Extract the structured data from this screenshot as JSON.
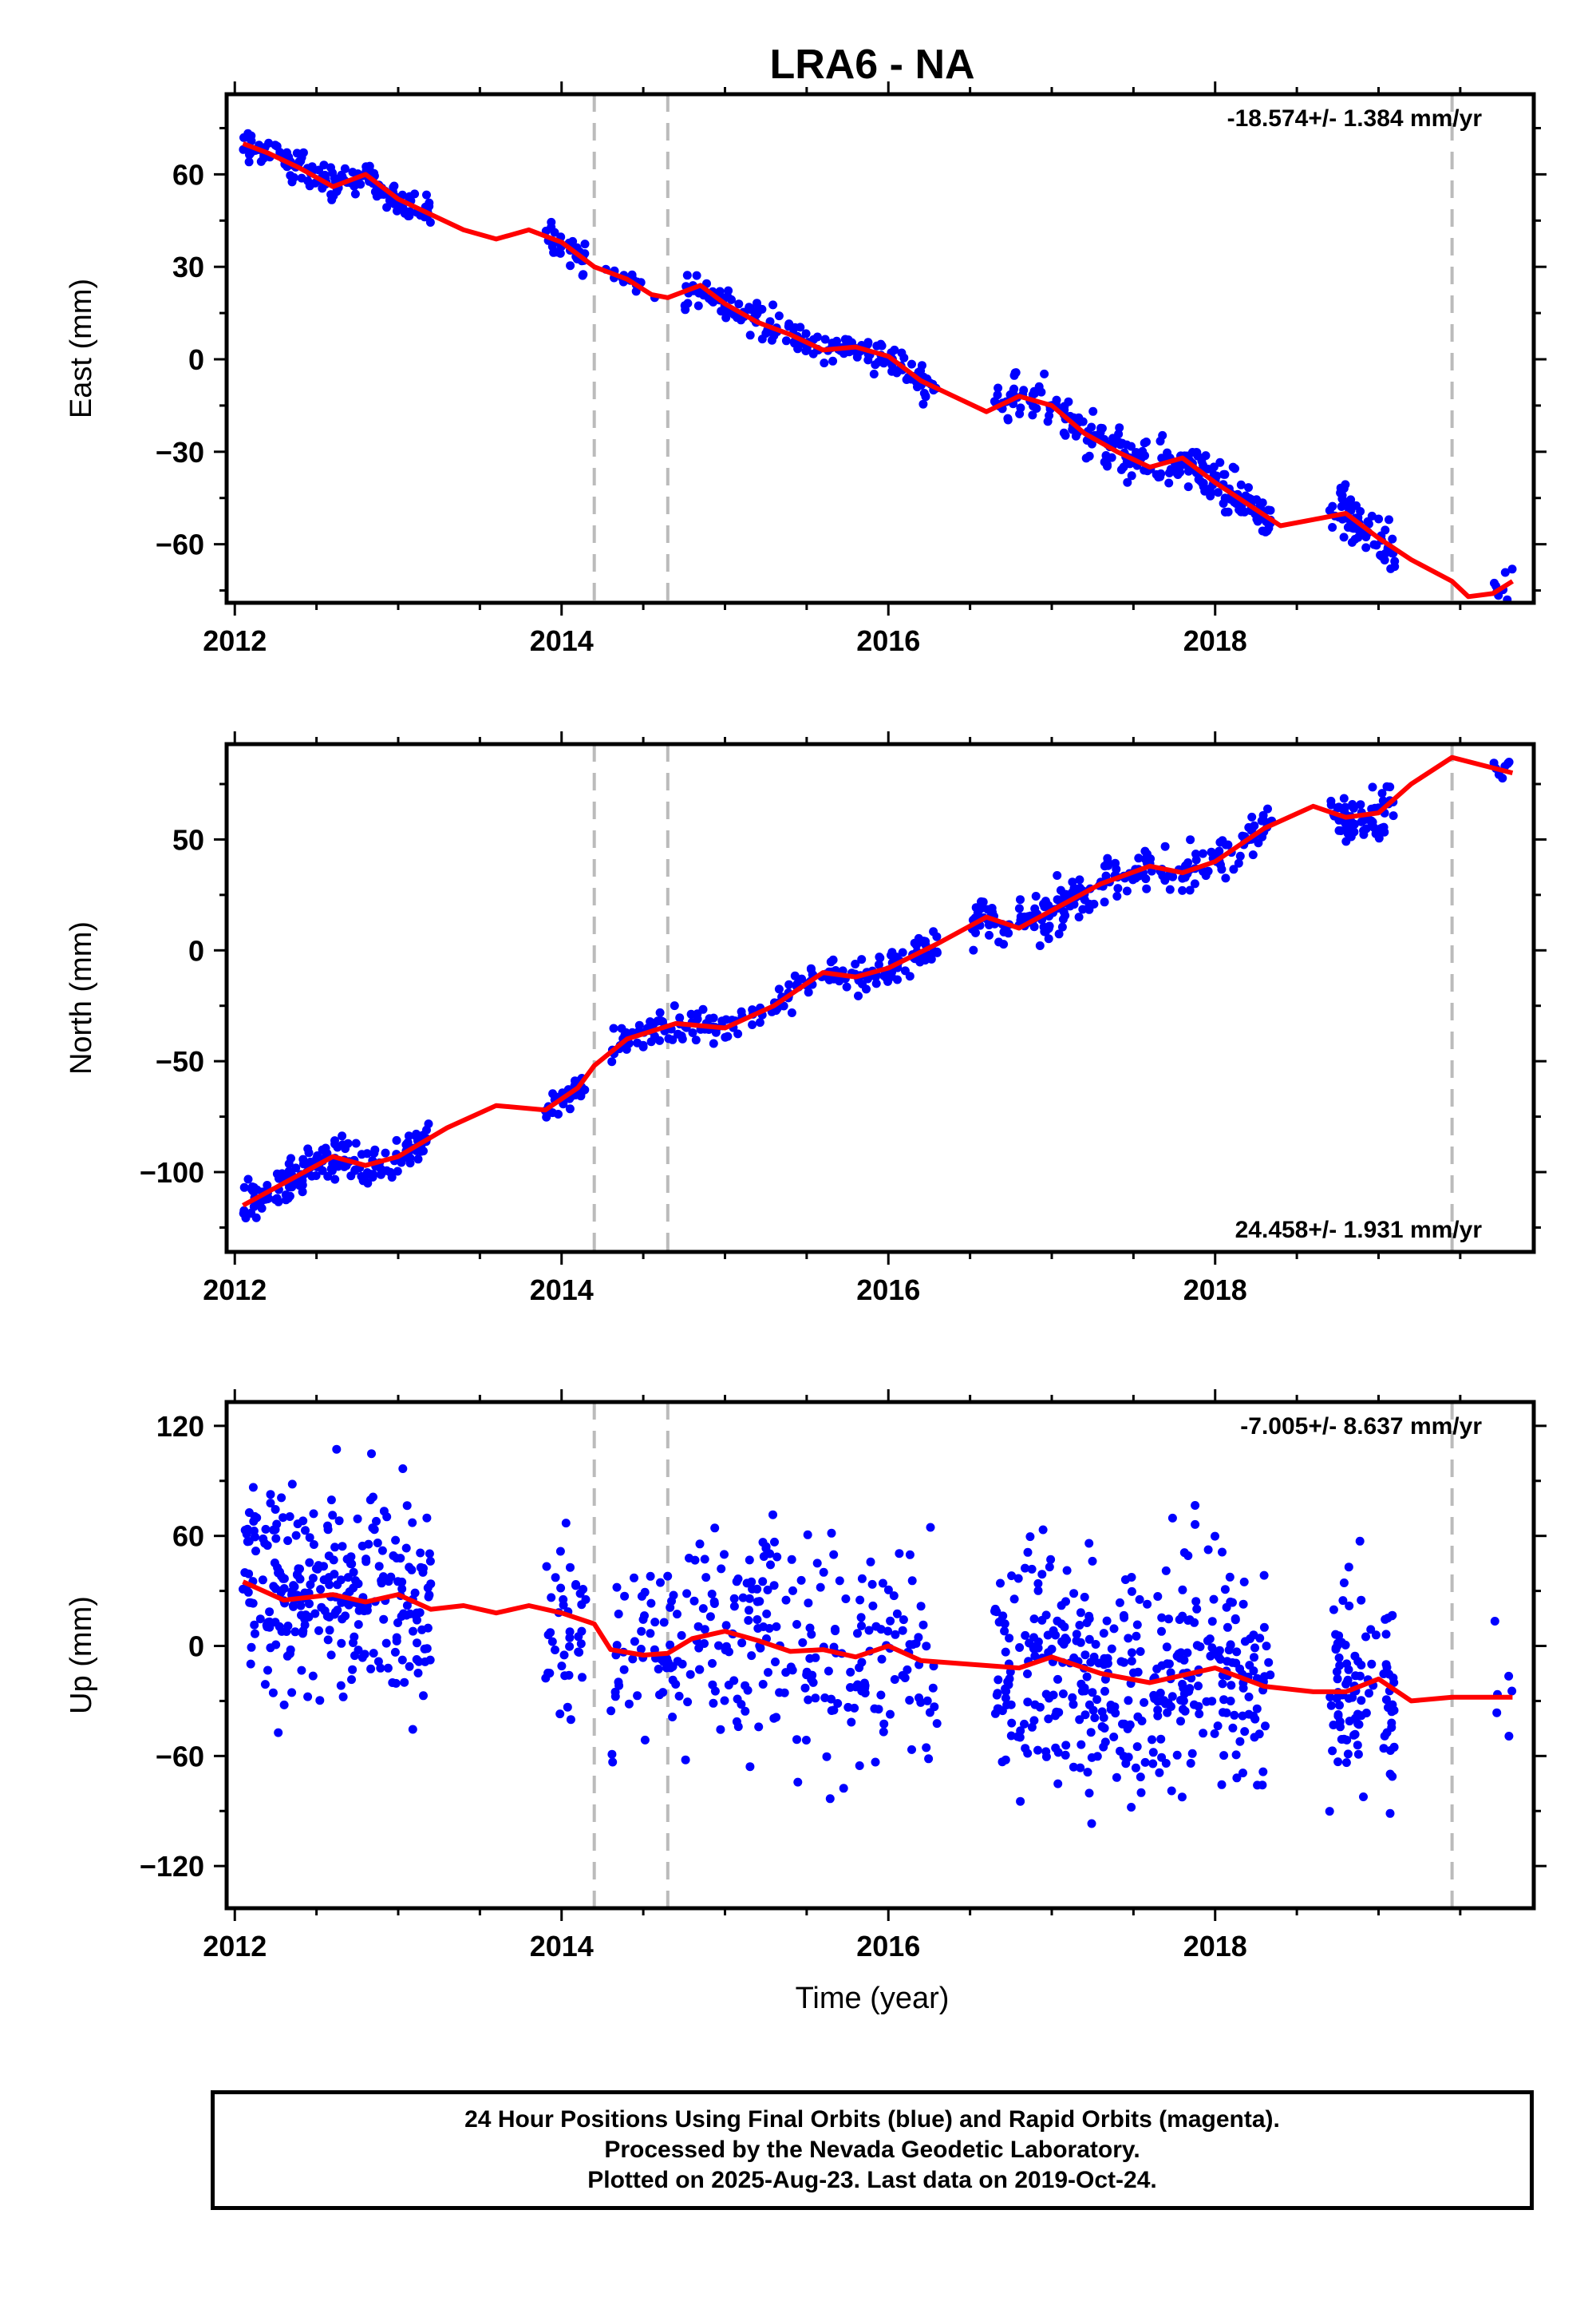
{
  "title": "LRA6 - NA",
  "xlabel": "Time (year)",
  "footer": {
    "line1": "24 Hour Positions Using Final Orbits (blue) and Rapid Orbits (magenta).",
    "line2": "Processed by the Nevada Geodetic Laboratory.",
    "line3": "Plotted on 2025-Aug-23. Last data on 2019-Oct-24."
  },
  "colors": {
    "points": "#0000ff",
    "model": "#ff0000",
    "breaks": "#bbbbbb",
    "frame": "#000000"
  },
  "chart_data": [
    {
      "type": "scatter",
      "component": "East",
      "ylabel": "East (mm)",
      "rate_label": "-18.574+/- 1.384 mm/yr",
      "xlim": [
        2011.95,
        2019.95
      ],
      "ylim": [
        -79,
        86
      ],
      "xticks": [
        2012,
        2014,
        2016,
        2018
      ],
      "yticks": [
        -60,
        -30,
        0,
        30,
        60
      ],
      "breaks": [
        2014.2,
        2014.65,
        2019.45
      ],
      "clusters": [
        {
          "t0": 2012.05,
          "t1": 2013.2,
          "n": 160,
          "spread": 3.5
        },
        {
          "t0": 2013.9,
          "t1": 2014.15,
          "n": 30,
          "spread": 3.5
        },
        {
          "t0": 2014.25,
          "t1": 2014.6,
          "n": 14,
          "spread": 3
        },
        {
          "t0": 2014.75,
          "t1": 2016.3,
          "n": 170,
          "spread": 4
        },
        {
          "t0": 2016.65,
          "t1": 2017.95,
          "n": 170,
          "spread": 5.5
        },
        {
          "t0": 2017.95,
          "t1": 2018.35,
          "n": 70,
          "spread": 5
        },
        {
          "t0": 2018.7,
          "t1": 2019.1,
          "n": 70,
          "spread": 6
        },
        {
          "t0": 2019.7,
          "t1": 2019.82,
          "n": 8,
          "spread": 3
        }
      ],
      "model": {
        "x": [
          2012.05,
          2012.2,
          2012.4,
          2012.6,
          2012.8,
          2013.0,
          2013.2,
          2013.4,
          2013.6,
          2013.8,
          2014.0,
          2014.2,
          2014.4,
          2014.55,
          2014.65,
          2014.85,
          2015.0,
          2015.2,
          2015.4,
          2015.6,
          2015.8,
          2016.0,
          2016.2,
          2016.4,
          2016.6,
          2016.8,
          2017.0,
          2017.2,
          2017.4,
          2017.6,
          2017.8,
          2018.0,
          2018.2,
          2018.4,
          2018.6,
          2018.8,
          2019.0,
          2019.2,
          2019.45,
          2019.55,
          2019.7,
          2019.82
        ],
        "y": [
          70,
          67,
          62,
          56,
          60,
          52,
          47,
          42,
          39,
          42,
          38,
          30,
          26,
          21,
          20,
          24,
          18,
          12,
          8,
          3,
          4,
          1,
          -7,
          -12,
          -17,
          -12,
          -15,
          -24,
          -30,
          -35,
          -32,
          -40,
          -47,
          -54,
          -52,
          -50,
          -58,
          -65,
          -72,
          -77,
          -76,
          -72
        ]
      }
    },
    {
      "type": "scatter",
      "component": "North",
      "ylabel": "North (mm)",
      "rate_label": "24.458+/- 1.931 mm/yr",
      "xlim": [
        2011.95,
        2019.95
      ],
      "ylim": [
        -136,
        93
      ],
      "xticks": [
        2012,
        2014,
        2016,
        2018
      ],
      "yticks": [
        -100,
        -50,
        0,
        50
      ],
      "breaks": [
        2014.2,
        2014.65,
        2019.45
      ],
      "clusters": [
        {
          "t0": 2012.05,
          "t1": 2013.2,
          "n": 170,
          "spread": 6
        },
        {
          "t0": 2013.9,
          "t1": 2014.15,
          "n": 30,
          "spread": 5
        },
        {
          "t0": 2014.3,
          "t1": 2016.3,
          "n": 200,
          "spread": 6
        },
        {
          "t0": 2016.5,
          "t1": 2018.35,
          "n": 220,
          "spread": 7
        },
        {
          "t0": 2018.7,
          "t1": 2019.1,
          "n": 70,
          "spread": 7
        },
        {
          "t0": 2019.7,
          "t1": 2019.82,
          "n": 8,
          "spread": 4
        }
      ],
      "model": {
        "x": [
          2012.05,
          2012.3,
          2012.6,
          2012.8,
          2013.0,
          2013.3,
          2013.6,
          2013.9,
          2014.1,
          2014.2,
          2014.4,
          2014.7,
          2015.0,
          2015.3,
          2015.6,
          2015.8,
          2016.0,
          2016.3,
          2016.6,
          2016.8,
          2017.0,
          2017.3,
          2017.6,
          2017.8,
          2018.0,
          2018.3,
          2018.6,
          2018.8,
          2019.0,
          2019.2,
          2019.45,
          2019.82
        ],
        "y": [
          -115,
          -105,
          -93,
          -97,
          -93,
          -80,
          -70,
          -72,
          -62,
          -52,
          -40,
          -33,
          -35,
          -25,
          -10,
          -12,
          -8,
          3,
          15,
          10,
          18,
          30,
          38,
          35,
          40,
          55,
          65,
          60,
          62,
          75,
          87,
          80
        ]
      }
    },
    {
      "type": "scatter",
      "component": "Up",
      "ylabel": "Up (mm)",
      "rate_label": "-7.005+/- 8.637 mm/yr",
      "xlim": [
        2011.95,
        2019.95
      ],
      "ylim": [
        -143,
        133
      ],
      "xticks": [
        2012,
        2014,
        2016,
        2018
      ],
      "yticks": [
        -120,
        -60,
        0,
        60,
        120
      ],
      "breaks": [
        2014.2,
        2014.65,
        2019.45
      ],
      "clusters": [
        {
          "t0": 2012.05,
          "t1": 2013.2,
          "n": 280,
          "spread": 40
        },
        {
          "t0": 2013.9,
          "t1": 2014.15,
          "n": 40,
          "spread": 35
        },
        {
          "t0": 2014.3,
          "t1": 2016.3,
          "n": 280,
          "spread": 45
        },
        {
          "t0": 2016.65,
          "t1": 2018.35,
          "n": 380,
          "spread": 45
        },
        {
          "t0": 2018.7,
          "t1": 2019.1,
          "n": 100,
          "spread": 45
        },
        {
          "t0": 2019.7,
          "t1": 2019.82,
          "n": 6,
          "spread": 35
        }
      ],
      "model": {
        "x": [
          2012.05,
          2012.3,
          2012.6,
          2012.8,
          2013.0,
          2013.2,
          2013.4,
          2013.6,
          2013.8,
          2014.0,
          2014.2,
          2014.3,
          2014.5,
          2014.65,
          2014.8,
          2015.0,
          2015.2,
          2015.4,
          2015.6,
          2015.8,
          2016.0,
          2016.2,
          2016.5,
          2016.8,
          2017.0,
          2017.3,
          2017.6,
          2017.8,
          2018.0,
          2018.3,
          2018.6,
          2018.8,
          2019.0,
          2019.2,
          2019.45,
          2019.82
        ],
        "y": [
          35,
          25,
          28,
          24,
          28,
          20,
          22,
          18,
          22,
          18,
          12,
          -2,
          -5,
          -4,
          4,
          8,
          3,
          -3,
          -2,
          -6,
          0,
          -8,
          -10,
          -12,
          -6,
          -15,
          -20,
          -16,
          -12,
          -22,
          -25,
          -25,
          -18,
          -30,
          -28,
          -28
        ]
      }
    }
  ]
}
